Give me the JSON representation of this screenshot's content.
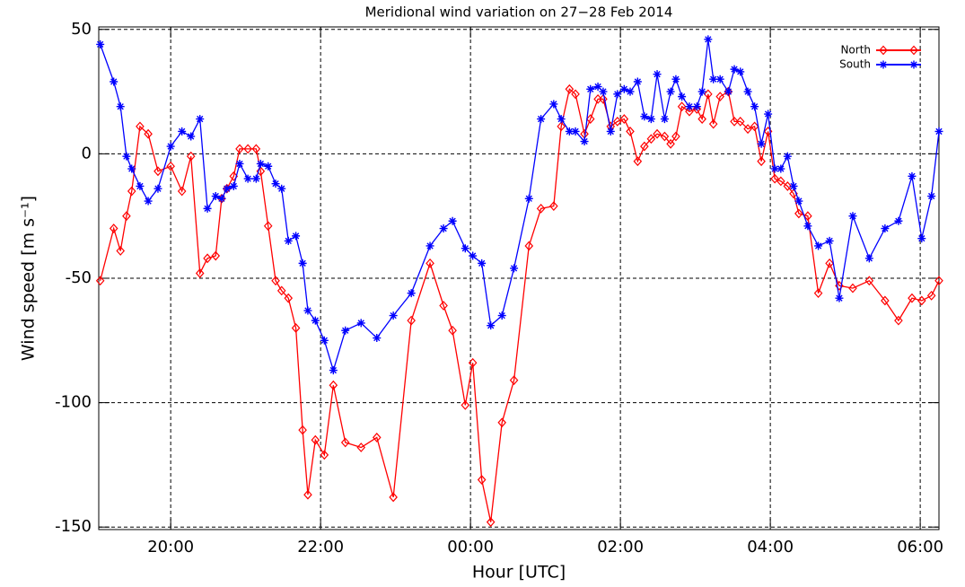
{
  "chart_data": {
    "type": "line",
    "title": "Meridional wind variation on 27−28 Feb 2014",
    "x_label": "Hour [UTC]",
    "y_label": "Wind speed [m s⁻¹]",
    "xlim": [
      19.04,
      30.25
    ],
    "ylim": [
      -151,
      51
    ],
    "xticks": [
      {
        "value": 20,
        "label": "20:00"
      },
      {
        "value": 22,
        "label": "22:00"
      },
      {
        "value": 24,
        "label": "00:00"
      },
      {
        "value": 26,
        "label": "02:00"
      },
      {
        "value": 28,
        "label": "04:00"
      },
      {
        "value": 30,
        "label": "06:00"
      }
    ],
    "yticks": [
      -150,
      -100,
      -50,
      0,
      50
    ],
    "grid": true,
    "legend": "top-right",
    "x": [
      19.06,
      19.24,
      19.33,
      19.41,
      19.48,
      19.59,
      19.7,
      19.83,
      20.0,
      20.15,
      20.27,
      20.39,
      20.49,
      20.6,
      20.68,
      20.75,
      20.84,
      20.92,
      21.03,
      21.14,
      21.2,
      21.3,
      21.4,
      21.48,
      21.57,
      21.67,
      21.76,
      21.83,
      21.93,
      22.05,
      22.17,
      22.33,
      22.54,
      22.75,
      22.97,
      23.21,
      23.46,
      23.64,
      23.76,
      23.93,
      24.03,
      24.15,
      24.27,
      24.42,
      24.58,
      24.78,
      24.94,
      25.11,
      25.21,
      25.32,
      25.4,
      25.52,
      25.6,
      25.7,
      25.77,
      25.87,
      25.96,
      26.05,
      26.13,
      26.23,
      26.32,
      26.41,
      26.49,
      26.59,
      26.67,
      26.74,
      26.82,
      26.92,
      27.02,
      27.09,
      27.17,
      27.24,
      27.33,
      27.44,
      27.52,
      27.6,
      27.7,
      27.79,
      27.88,
      27.97,
      28.06,
      28.14,
      28.23,
      28.31,
      28.38,
      28.5,
      28.64,
      28.79,
      28.92,
      29.1,
      29.32,
      29.53,
      29.71,
      29.89,
      30.02,
      30.15,
      30.25
    ],
    "series": [
      {
        "name": "North",
        "color": "#ff0000",
        "marker": "diamond",
        "values": [
          -51,
          -30,
          -39,
          -25,
          -15,
          11,
          8,
          -7,
          -5,
          -15,
          -1,
          -48,
          -42,
          -41,
          -18,
          -14,
          -9,
          2,
          2,
          2,
          -7,
          -29,
          -51,
          -55,
          -58,
          -70,
          -111,
          -137,
          -115,
          -121,
          -93,
          -116,
          -118,
          -114,
          -138,
          -67,
          -44,
          -61,
          -71,
          -101,
          -84,
          -131,
          -148,
          -108,
          -91,
          -37,
          -22,
          -21,
          11,
          26,
          24,
          8,
          14,
          22,
          22,
          11,
          13,
          14,
          9,
          -3,
          3,
          6,
          8,
          7,
          4,
          7,
          19,
          17,
          18,
          14,
          24,
          12,
          23,
          25,
          13,
          13,
          10,
          11,
          -3,
          9,
          -10,
          -11,
          -13,
          -16,
          -24,
          -25,
          -56,
          -44,
          -53,
          -54,
          -51,
          -59,
          -67,
          -58,
          -59,
          -57,
          -51
        ]
      },
      {
        "name": "South",
        "color": "#0000ff",
        "marker": "asterisk",
        "values": [
          44,
          29,
          19,
          -1,
          -6,
          -13,
          -19,
          -14,
          3,
          9,
          7,
          14,
          -22,
          -17,
          -18,
          -14,
          -13,
          -4,
          -10,
          -10,
          -4,
          -5,
          -12,
          -14,
          -35,
          -33,
          -44,
          -63,
          -67,
          -75,
          -87,
          -71,
          -68,
          -74,
          -65,
          -56,
          -37,
          -30,
          -27,
          -38,
          -41,
          -44,
          -69,
          -65,
          -46,
          -18,
          14,
          20,
          14,
          9,
          9,
          5,
          26,
          27,
          25,
          9,
          24,
          26,
          25,
          29,
          15,
          14,
          32,
          14,
          25,
          30,
          23,
          19,
          19,
          25,
          46,
          30,
          30,
          25,
          34,
          33,
          25,
          19,
          4,
          16,
          -6,
          -6,
          -1,
          -13,
          -19,
          -29,
          -37,
          -35,
          -58,
          -25,
          -42,
          -30,
          -27,
          -9,
          -34,
          -17,
          9
        ]
      }
    ]
  }
}
